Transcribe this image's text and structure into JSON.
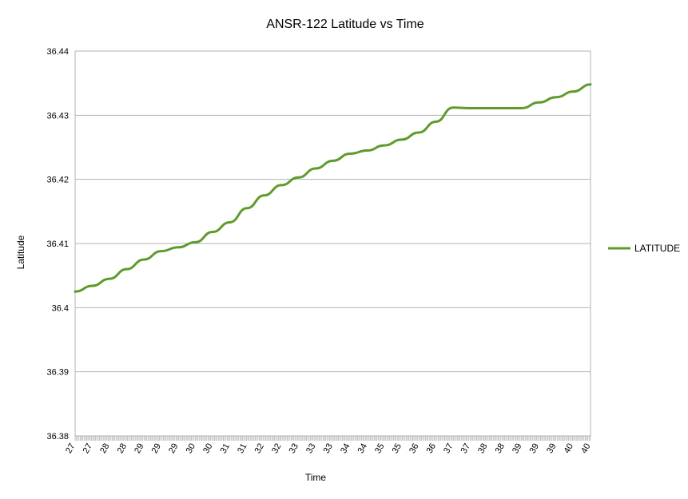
{
  "chart_data": {
    "type": "line",
    "title": "ANSR-122 Latitude vs Time",
    "xlabel": "Time",
    "ylabel": "Latitude",
    "ylim": [
      36.38,
      36.44
    ],
    "yticks": [
      "36.38",
      "36.39",
      "36.4",
      "36.41",
      "36.42",
      "36.43",
      "36.44"
    ],
    "xtick_labels": [
      "27",
      "27",
      "28",
      "28",
      "29",
      "29",
      "29",
      "30",
      "30",
      "31",
      "31",
      "32",
      "32",
      "33",
      "33",
      "33",
      "34",
      "34",
      "35",
      "35",
      "36",
      "36",
      "37",
      "37",
      "38",
      "38",
      "39",
      "39",
      "39",
      "40",
      "40"
    ],
    "grid": true,
    "legend_position": "right",
    "series": [
      {
        "name": "LATITUDE",
        "color": "#5d9b2a",
        "values": [
          36.4025,
          36.4034,
          36.4045,
          36.406,
          36.4075,
          36.4088,
          36.4094,
          36.4102,
          36.4118,
          36.4133,
          36.4155,
          36.4175,
          36.4191,
          36.4203,
          36.4217,
          36.4229,
          36.424,
          36.4245,
          36.4253,
          36.4262,
          36.4273,
          36.429,
          36.4312,
          36.4311,
          36.4311,
          36.4311,
          36.4311,
          36.432,
          36.4328,
          36.4337,
          36.4348
        ]
      }
    ]
  }
}
